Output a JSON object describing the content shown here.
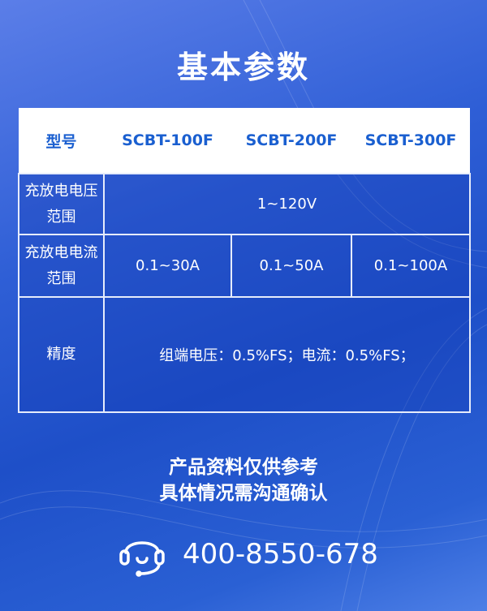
{
  "title": "基本参数",
  "table": {
    "header": [
      "型号",
      "SCBT-100F",
      "SCBT-200F",
      "SCBT-300F"
    ],
    "voltage": {
      "label": "充放电电压范围",
      "value": "1~120V"
    },
    "current": {
      "label": "充放电电流范围",
      "values": [
        "0.1~30A",
        "0.1~50A",
        "0.1~100A"
      ]
    },
    "accuracy": {
      "label": "精度",
      "value": "组端电压：0.5%FS；电流：0.5%FS；"
    }
  },
  "footer": {
    "line1": "产品资料仅供参考",
    "line2": "具体情况需沟通确认"
  },
  "contact": {
    "icon": "headset-icon",
    "phone": "400-8550-678"
  },
  "colors": {
    "accent": "#1a5fd0",
    "background": "#2f5fd6"
  }
}
